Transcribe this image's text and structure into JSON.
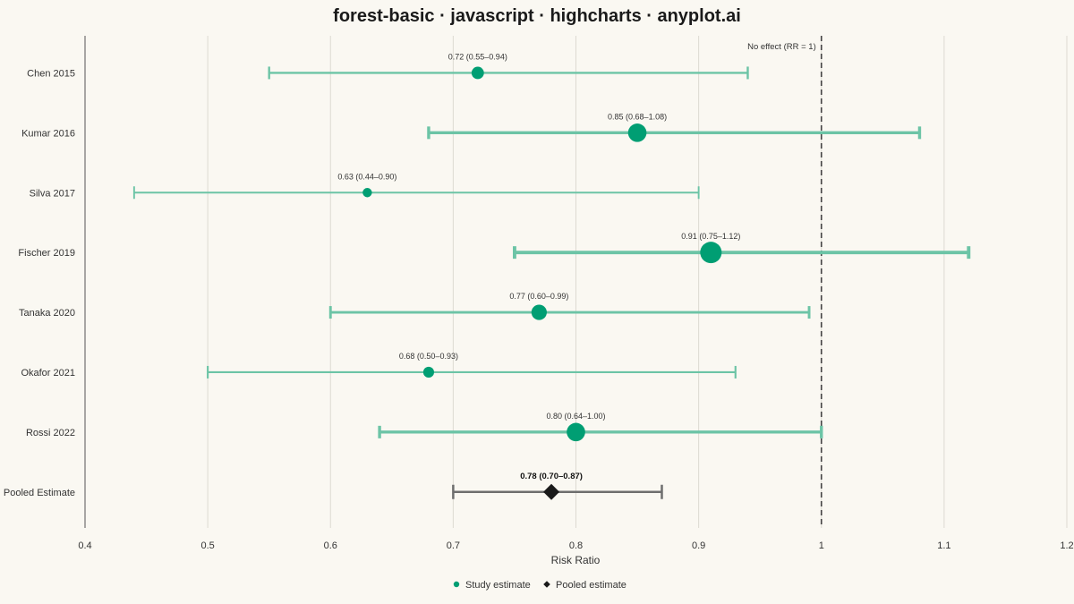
{
  "chart_data": {
    "type": "forest",
    "title": "forest-basic · javascript · highcharts · anyplot.ai",
    "xlabel": "Risk Ratio",
    "xlim": [
      0.4,
      1.2
    ],
    "xticks": [
      "0.4",
      "0.5",
      "0.6",
      "0.7",
      "0.8",
      "0.9",
      "1",
      "1.1",
      "1.2"
    ],
    "grid": true,
    "reference_line": {
      "value": 1,
      "label": "No effect (RR = 1)"
    },
    "studies": [
      {
        "label": "Chen 2015",
        "estimate": 0.72,
        "lower": 0.55,
        "upper": 0.94,
        "text": "0.72 (0.55–0.94)",
        "weight": 2
      },
      {
        "label": "Kumar 2016",
        "estimate": 0.85,
        "lower": 0.68,
        "upper": 1.08,
        "text": "0.85 (0.68–1.08)",
        "weight": 4
      },
      {
        "label": "Silva 2017",
        "estimate": 0.63,
        "lower": 0.44,
        "upper": 0.9,
        "text": "0.63 (0.44–0.90)",
        "weight": 1
      },
      {
        "label": "Fischer 2019",
        "estimate": 0.91,
        "lower": 0.75,
        "upper": 1.12,
        "text": "0.91 (0.75–1.12)",
        "weight": 5
      },
      {
        "label": "Tanaka 2020",
        "estimate": 0.77,
        "lower": 0.6,
        "upper": 0.99,
        "text": "0.77 (0.60–0.99)",
        "weight": 3
      },
      {
        "label": "Okafor 2021",
        "estimate": 0.68,
        "lower": 0.5,
        "upper": 0.93,
        "text": "0.68 (0.50–0.93)",
        "weight": 1.5
      },
      {
        "label": "Rossi 2022",
        "estimate": 0.8,
        "lower": 0.64,
        "upper": 1.0,
        "text": "0.80 (0.64–1.00)",
        "weight": 4
      }
    ],
    "pooled": {
      "label": "Pooled Estimate",
      "estimate": 0.78,
      "lower": 0.7,
      "upper": 0.87,
      "text": "0.78 (0.70–0.87)"
    },
    "legend": {
      "position": "bottom-center",
      "items": [
        {
          "name": "Study estimate",
          "marker": "circle"
        },
        {
          "name": "Pooled estimate",
          "marker": "diamond"
        }
      ]
    },
    "colors": {
      "study": "#009E73",
      "study_ci": "#6CC4A6",
      "pooled": "#1a1a1a",
      "pooled_ci": "#6E6E6E",
      "reference": "#444444",
      "grid": "#DDDAD2",
      "background": "#FAF8F2"
    }
  }
}
